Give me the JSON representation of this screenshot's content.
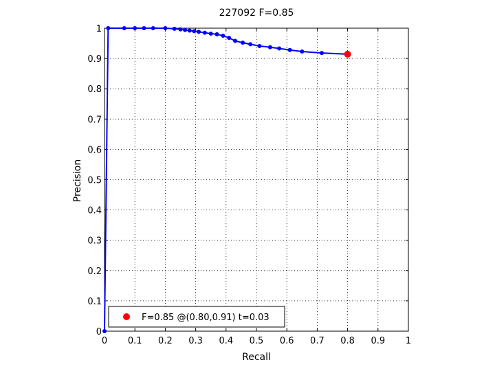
{
  "chart_data": {
    "type": "line",
    "title": "227092 F=0.85",
    "xlabel": "Recall",
    "ylabel": "Precision",
    "xlim": [
      0,
      1
    ],
    "ylim": [
      0,
      1
    ],
    "xticks": [
      "0",
      "0.1",
      "0.2",
      "0.3",
      "0.4",
      "0.5",
      "0.6",
      "0.7",
      "0.8",
      "0.9",
      "1"
    ],
    "yticks": [
      "0",
      "0.1",
      "0.2",
      "0.3",
      "0.4",
      "0.5",
      "0.6",
      "0.7",
      "0.8",
      "0.9",
      "1"
    ],
    "grid": true,
    "legend_position": "bottom-left",
    "series": [
      {
        "color": "#0000ff",
        "marker": "dot",
        "x": [
          0,
          0.012,
          0.065,
          0.1,
          0.13,
          0.16,
          0.2,
          0.23,
          0.25,
          0.265,
          0.28,
          0.295,
          0.31,
          0.33,
          0.35,
          0.37,
          0.39,
          0.41,
          0.43,
          0.455,
          0.48,
          0.51,
          0.545,
          0.575,
          0.61,
          0.65,
          0.715,
          0.8
        ],
        "y": [
          0,
          1,
          1,
          1,
          1,
          1,
          1,
          0.998,
          0.996,
          0.994,
          0.992,
          0.99,
          0.988,
          0.985,
          0.982,
          0.98,
          0.975,
          0.968,
          0.958,
          0.952,
          0.947,
          0.941,
          0.937,
          0.933,
          0.928,
          0.923,
          0.918,
          0.914
        ]
      }
    ],
    "best_point": {
      "x": 0.8,
      "y": 0.914,
      "color": "#ff0000"
    },
    "legend_text": "F=0.85 @(0.80,0.91) t=0.03"
  }
}
